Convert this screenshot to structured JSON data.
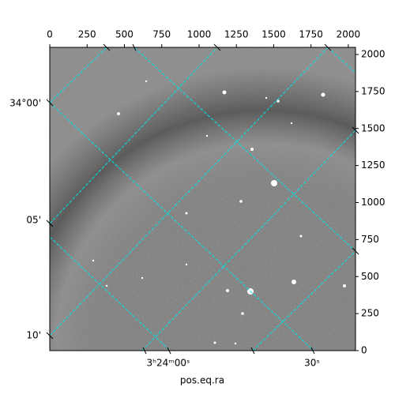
{
  "chart_data": {
    "type": "image",
    "xlabel": "pos.eq.ra",
    "xlim": [
      0,
      2048
    ],
    "ylim": [
      0,
      2048
    ],
    "xticks": [
      0,
      250,
      500,
      750,
      1000,
      1250,
      1500,
      1750,
      2000
    ],
    "yticks": [
      0,
      250,
      500,
      750,
      1000,
      1250,
      1500,
      1750,
      2000
    ],
    "dec_labels": [
      "34°00'",
      "05'",
      "10'"
    ],
    "ra_labels": [
      "3ʰ24ᵐ00ˢ",
      "30ˢ"
    ],
    "grid_color": "#00e5e5"
  }
}
